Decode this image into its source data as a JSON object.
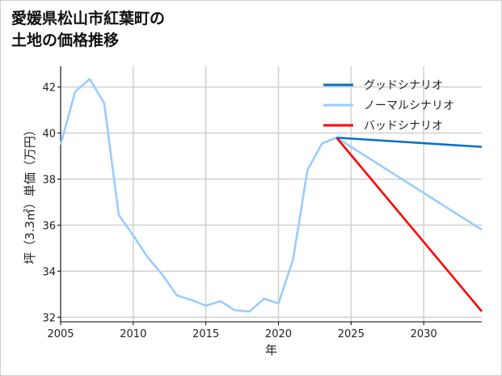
{
  "chart_data": {
    "type": "line",
    "title": "愛媛県松山市紅葉町の\n土地の価格推移",
    "xlabel": "年",
    "ylabel": "坪（3.3㎡）単価（万円）",
    "xlim": [
      2005,
      2034
    ],
    "ylim": [
      31.8,
      42.9
    ],
    "xticks": [
      2005,
      2010,
      2015,
      2020,
      2025,
      2030
    ],
    "yticks": [
      32,
      34,
      36,
      38,
      40,
      42
    ],
    "grid": true,
    "legend_position": "top-right",
    "series": [
      {
        "name": "グッドシナリオ",
        "color": "#0070cc",
        "x": [
          2024,
          2034
        ],
        "y": [
          39.8,
          39.4
        ]
      },
      {
        "name": "ノーマルシナリオ",
        "color": "#99ccff",
        "x": [
          2005,
          2006,
          2007,
          2008,
          2009,
          2010,
          2011,
          2012,
          2013,
          2014,
          2015,
          2016,
          2017,
          2018,
          2019,
          2020,
          2021,
          2022,
          2023,
          2024,
          2034
        ],
        "y": [
          39.5,
          41.8,
          42.35,
          41.3,
          36.45,
          35.55,
          34.6,
          33.85,
          32.95,
          32.75,
          32.5,
          32.7,
          32.3,
          32.25,
          32.8,
          32.6,
          34.5,
          38.4,
          39.55,
          39.8,
          35.8
        ]
      },
      {
        "name": "バッドシナリオ",
        "color": "#ff0000",
        "x": [
          2024,
          2034
        ],
        "y": [
          39.8,
          32.25
        ]
      }
    ]
  }
}
